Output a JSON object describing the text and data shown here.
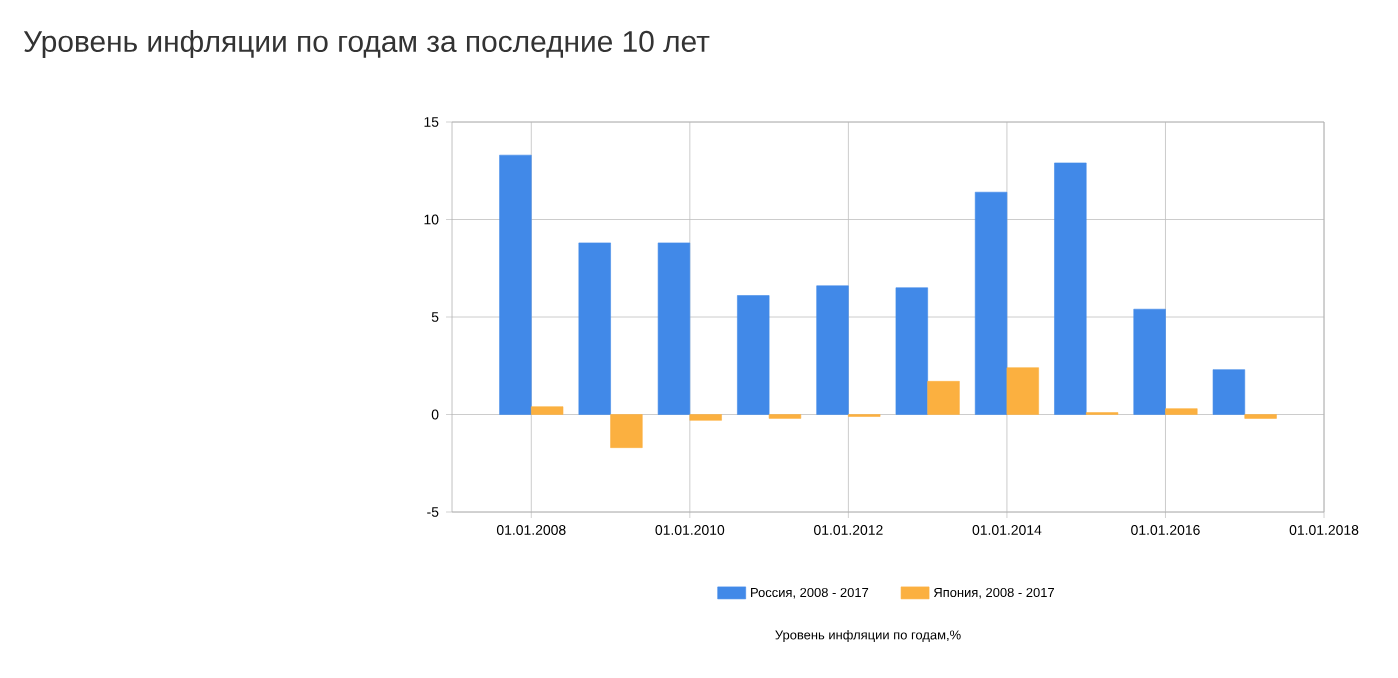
{
  "chart_data": {
    "type": "bar",
    "title": "Уровень инфляции по годам за последние 10 лет",
    "x": [
      "2008",
      "2009",
      "2010",
      "2011",
      "2012",
      "2013",
      "2014",
      "2015",
      "2016",
      "2017"
    ],
    "series": [
      {
        "name": "Россия, 2008 - 2017",
        "color": "#4189e8",
        "values": [
          13.3,
          8.8,
          8.8,
          6.1,
          6.6,
          6.5,
          11.4,
          12.9,
          5.4,
          2.3
        ]
      },
      {
        "name": "Япония, 2008 - 2017",
        "color": "#fbb040",
        "values": [
          0.4,
          -1.7,
          -0.3,
          -0.2,
          -0.1,
          1.7,
          2.4,
          0.1,
          0.3,
          -0.2
        ]
      }
    ],
    "xlim": [
      "2007",
      "2018"
    ],
    "xticks": [
      {
        "value": "2008",
        "label": "01.01.2008"
      },
      {
        "value": "2010",
        "label": "01.01.2010"
      },
      {
        "value": "2012",
        "label": "01.01.2012"
      },
      {
        "value": "2014",
        "label": "01.01.2014"
      },
      {
        "value": "2016",
        "label": "01.01.2016"
      },
      {
        "value": "2018",
        "label": "01.01.2018"
      }
    ],
    "ylim": [
      -5,
      15
    ],
    "yticks": [
      -5,
      0,
      5,
      10,
      15
    ],
    "grid": true,
    "legend": "bottom",
    "annotations": [
      "Уровень инфляции по годам,%"
    ]
  }
}
